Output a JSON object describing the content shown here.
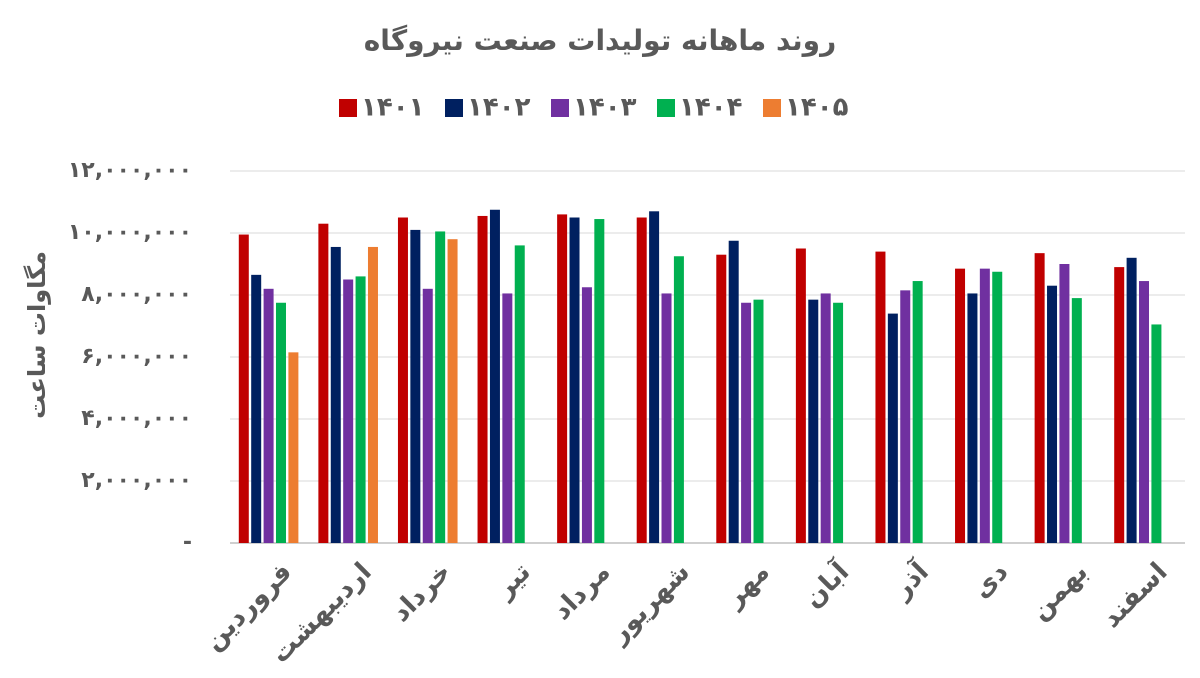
{
  "chart_data": {
    "type": "bar",
    "title": "روند ماهانه تولیدات صنعت نیروگاه",
    "y_label": "مگاوات ساعت",
    "categories": [
      "فروردین",
      "اردیبهشت",
      "خرداد",
      "تیر",
      "مرداد",
      "شهریور",
      "مهر",
      "آبان",
      "آذر",
      "دی",
      "بهمن",
      "اسفند"
    ],
    "series": [
      {
        "name": "۱۴۰۱",
        "color": "#c00000",
        "values": [
          9950000,
          10300000,
          10500000,
          10550000,
          10600000,
          10500000,
          9300000,
          9500000,
          9400000,
          8850000,
          9350000,
          8900000
        ]
      },
      {
        "name": "۱۴۰۲",
        "color": "#002060",
        "values": [
          8650000,
          9550000,
          10100000,
          10750000,
          10500000,
          10700000,
          9750000,
          7850000,
          7400000,
          8050000,
          8300000,
          9200000
        ]
      },
      {
        "name": "۱۴۰۳",
        "color": "#7030a0",
        "values": [
          8200000,
          8500000,
          8200000,
          8050000,
          8250000,
          8050000,
          7750000,
          8050000,
          8150000,
          8850000,
          9000000,
          8450000
        ]
      },
      {
        "name": "۱۴۰۴",
        "color": "#00b050",
        "values": [
          7750000,
          8600000,
          10050000,
          9600000,
          10450000,
          9250000,
          7850000,
          7750000,
          8450000,
          8750000,
          7900000,
          7050000
        ]
      },
      {
        "name": "۱۴۰۵",
        "color": "#ed7d31",
        "values": [
          6150000,
          9550000,
          9800000,
          null,
          null,
          null,
          null,
          null,
          null,
          null,
          null,
          null
        ]
      }
    ],
    "ylim": [
      0,
      12000000
    ],
    "yticks": [
      {
        "value": 0,
        "label": "-"
      },
      {
        "value": 2000000,
        "label": "۲,۰۰۰,۰۰۰"
      },
      {
        "value": 4000000,
        "label": "۴,۰۰۰,۰۰۰"
      },
      {
        "value": 6000000,
        "label": "۶,۰۰۰,۰۰۰"
      },
      {
        "value": 8000000,
        "label": "۸,۰۰۰,۰۰۰"
      },
      {
        "value": 10000000,
        "label": "۱۰,۰۰۰,۰۰۰"
      },
      {
        "value": 12000000,
        "label": "۱۲,۰۰۰,۰۰۰"
      }
    ],
    "grid": true
  }
}
